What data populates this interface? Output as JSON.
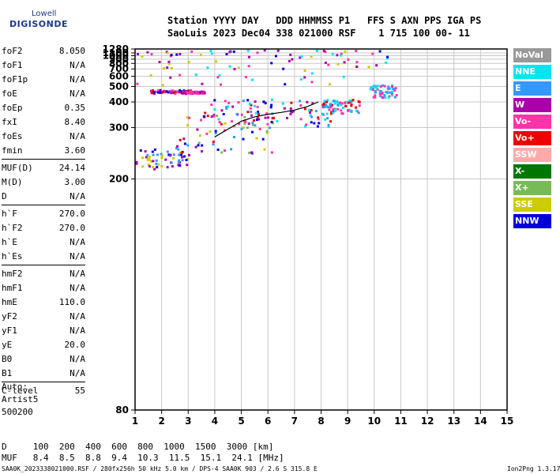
{
  "logo": {
    "line1": "Lowell",
    "line2": "DIGISONDE"
  },
  "header": {
    "line1": "Station YYYY DAY   DDD HHMMSS P1   FFS S AXN PPS IGA PS",
    "line2": "SaoLuis 2023 Dec04 338 021000 RSF    1 715 100 00- 11"
  },
  "params": [
    {
      "label": "foF2",
      "value": "8.050"
    },
    {
      "label": "foF1",
      "value": "N/A"
    },
    {
      "label": "foF1p",
      "value": "N/A"
    },
    {
      "label": "foE",
      "value": "N/A"
    },
    {
      "label": "foEp",
      "value": "0.35"
    },
    {
      "label": "fxI",
      "value": "8.40"
    },
    {
      "label": "foEs",
      "value": "N/A"
    },
    {
      "label": "fmin",
      "value": "3.60"
    },
    {
      "label": "MUF(D)",
      "value": "24.14"
    },
    {
      "label": "M(D)",
      "value": "3.00"
    },
    {
      "label": "D",
      "value": "N/A"
    },
    {
      "label": "h`F",
      "value": "270.0"
    },
    {
      "label": "h`F2",
      "value": "270.0"
    },
    {
      "label": "h`E",
      "value": "N/A"
    },
    {
      "label": "h`Es",
      "value": "N/A"
    },
    {
      "label": "hmF2",
      "value": "N/A"
    },
    {
      "label": "hmF1",
      "value": "N/A"
    },
    {
      "label": "hmE",
      "value": "110.0"
    },
    {
      "label": "yF2",
      "value": "N/A"
    },
    {
      "label": "yF1",
      "value": "N/A"
    },
    {
      "label": "yE",
      "value": "20.0"
    },
    {
      "label": "B0",
      "value": "N/A"
    },
    {
      "label": "B1",
      "value": "N/A"
    },
    {
      "label": "C-level",
      "value": "55"
    }
  ],
  "autoscale": {
    "label": "Auto:",
    "name": "Artist5",
    "version": "500200"
  },
  "legend": [
    {
      "label": "NoVal",
      "color": "#999999"
    },
    {
      "label": "NNE",
      "color": "#00e5ee"
    },
    {
      "label": "E",
      "color": "#3399ff"
    },
    {
      "label": "W",
      "color": "#aa00aa"
    },
    {
      "label": "Vo-",
      "color": "#ff33aa"
    },
    {
      "label": "Vo+",
      "color": "#ee0000"
    },
    {
      "label": "SSW",
      "color": "#ffaaaa"
    },
    {
      "label": "X-",
      "color": "#007700"
    },
    {
      "label": "X+",
      "color": "#77bb55"
    },
    {
      "label": "SSE",
      "color": "#cccc00"
    },
    {
      "label": "NNW",
      "color": "#0000dd"
    }
  ],
  "muf_table": {
    "d_line": "D     100  200  400  600  800  1000  1500  3000 [km]",
    "muf_line": "MUF   8.4  8.5  8.8  9.4  10.3  11.5  15.1  24.1 [MHz]"
  },
  "footer": {
    "file": "SAA0K_2023338021000.RSF / 280fx256h 50 kHz 5.0 km / DPS-4 SAA0K 903 / 2.6 S 315.8 E",
    "version": "Ion2Png 1.3.17"
  },
  "chart_data": {
    "type": "scatter",
    "x_ticks": [
      "1",
      "2",
      "3",
      "4",
      "5",
      "6",
      "7",
      "8",
      "9",
      "10",
      "11",
      "12",
      "13",
      "14",
      "15"
    ],
    "y_ticks": [
      "80",
      "200",
      "300",
      "400",
      "500",
      "600",
      "700",
      "800",
      "900",
      "1000",
      "1100",
      "1280"
    ],
    "xlim": [
      1,
      15
    ],
    "ylim": [
      80,
      1280
    ],
    "y_scale": "reciprocal",
    "grid": true,
    "clusters": [
      {
        "x": [
          1.0,
          3.0
        ],
        "y": [
          215,
          250
        ],
        "colors": [
          "#0000dd",
          "#3399ff",
          "#aa00aa",
          "#cccc00"
        ]
      },
      {
        "x": [
          2.5,
          6.2
        ],
        "y": [
          240,
          360
        ],
        "colors": [
          "#0000dd",
          "#aa00aa",
          "#ff33aa",
          "#cccc00",
          "#77bb55",
          "#ee0000",
          "#3399ff"
        ]
      },
      {
        "x": [
          3.8,
          8.6
        ],
        "y": [
          305,
          420
        ],
        "colors": [
          "#ee0000",
          "#ff33aa",
          "#aa00aa",
          "#0000dd",
          "#3399ff",
          "#00e5ee"
        ]
      },
      {
        "x": [
          8.0,
          9.5
        ],
        "y": [
          350,
          420
        ],
        "colors": [
          "#00e5ee",
          "#3399ff",
          "#ff33aa",
          "#ee0000"
        ]
      },
      {
        "x": [
          1.5,
          3.1
        ],
        "y": [
          455,
          480
        ],
        "colors": [
          "#aa00aa",
          "#ee0000",
          "#ff33aa",
          "#0000dd"
        ]
      },
      {
        "x": [
          2.8,
          3.6
        ],
        "y": [
          455,
          470
        ],
        "colors": [
          "#aa00aa",
          "#ff33aa"
        ]
      },
      {
        "x": [
          9.8,
          10.8
        ],
        "y": [
          430,
          520
        ],
        "colors": [
          "#00e5ee",
          "#3399ff",
          "#ff33aa"
        ]
      },
      {
        "x": [
          1.0,
          10.5
        ],
        "y": [
          520,
          1280
        ],
        "colors": [
          "#ff33aa",
          "#aa00aa",
          "#0000dd",
          "#00e5ee",
          "#cccc00"
        ]
      }
    ],
    "trace": {
      "color": "#000000",
      "x": [
        4.0,
        4.6,
        5.0,
        5.5,
        6.0,
        6.5,
        7.0,
        7.5,
        7.9
      ],
      "y": [
        275,
        300,
        320,
        335,
        345,
        352,
        362,
        378,
        400
      ]
    }
  }
}
